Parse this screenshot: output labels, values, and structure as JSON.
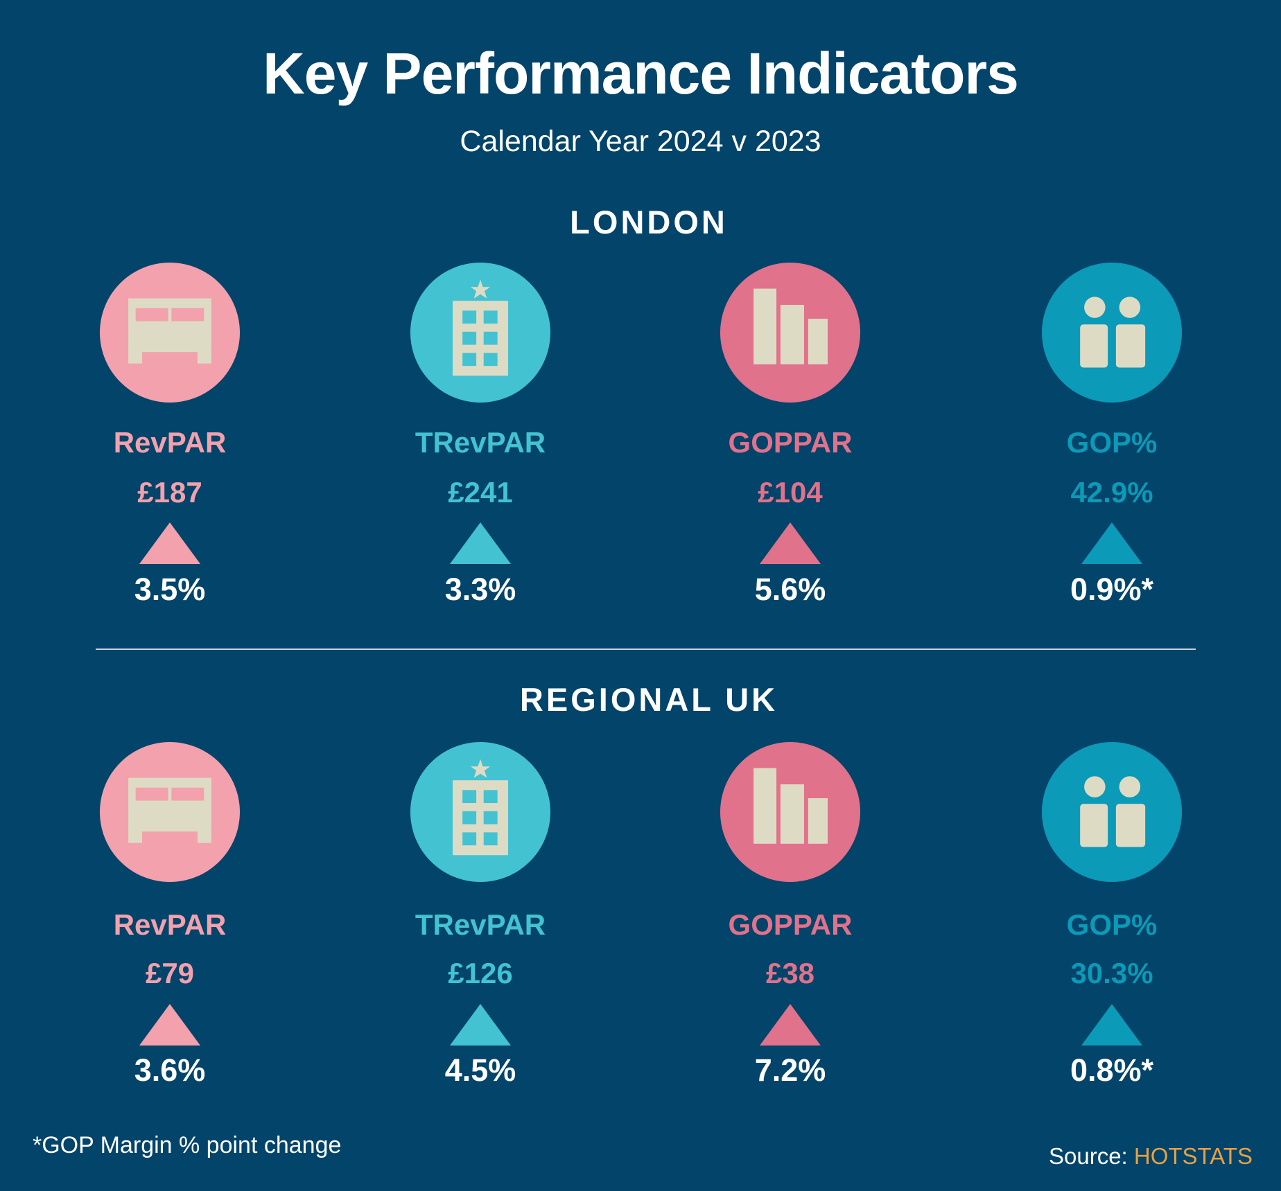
{
  "title": "Key Performance Indicators",
  "subtitle": "Calendar Year 2024 v 2023",
  "colors": {
    "background": "#03446a",
    "revpar": "#f2a1ad",
    "trevpar": "#43c3d2",
    "goppar": "#e0728b",
    "gop": "#0b9ab8",
    "icon": "#dedbc5",
    "brand": "#e8a043"
  },
  "sections": [
    {
      "title": "LONDON",
      "kpis": [
        {
          "label": "RevPAR",
          "value": "£187",
          "change": "3.5%",
          "icon": "bed-icon",
          "trend": "up"
        },
        {
          "label": "TRevPAR",
          "value": "£241",
          "change": "3.3%",
          "icon": "hotel-building-icon",
          "trend": "up"
        },
        {
          "label": "GOPPAR",
          "value": "£104",
          "change": "5.6%",
          "icon": "bar-chart-icon",
          "trend": "up"
        },
        {
          "label": "GOP%",
          "value": "42.9%",
          "change": "0.9%*",
          "icon": "people-icon",
          "trend": "up"
        }
      ]
    },
    {
      "title": "REGIONAL UK",
      "kpis": [
        {
          "label": "RevPAR",
          "value": "£79",
          "change": "3.6%",
          "icon": "bed-icon",
          "trend": "up"
        },
        {
          "label": "TRevPAR",
          "value": "£126",
          "change": "4.5%",
          "icon": "hotel-building-icon",
          "trend": "up"
        },
        {
          "label": "GOPPAR",
          "value": "£38",
          "change": "7.2%",
          "icon": "bar-chart-icon",
          "trend": "up"
        },
        {
          "label": "GOP%",
          "value": "30.3%",
          "change": "0.8%*",
          "icon": "people-icon",
          "trend": "up"
        }
      ]
    }
  ],
  "footnote": "*GOP Margin % point change",
  "source": {
    "label": "Source:",
    "brand": "HOTSTATS"
  }
}
